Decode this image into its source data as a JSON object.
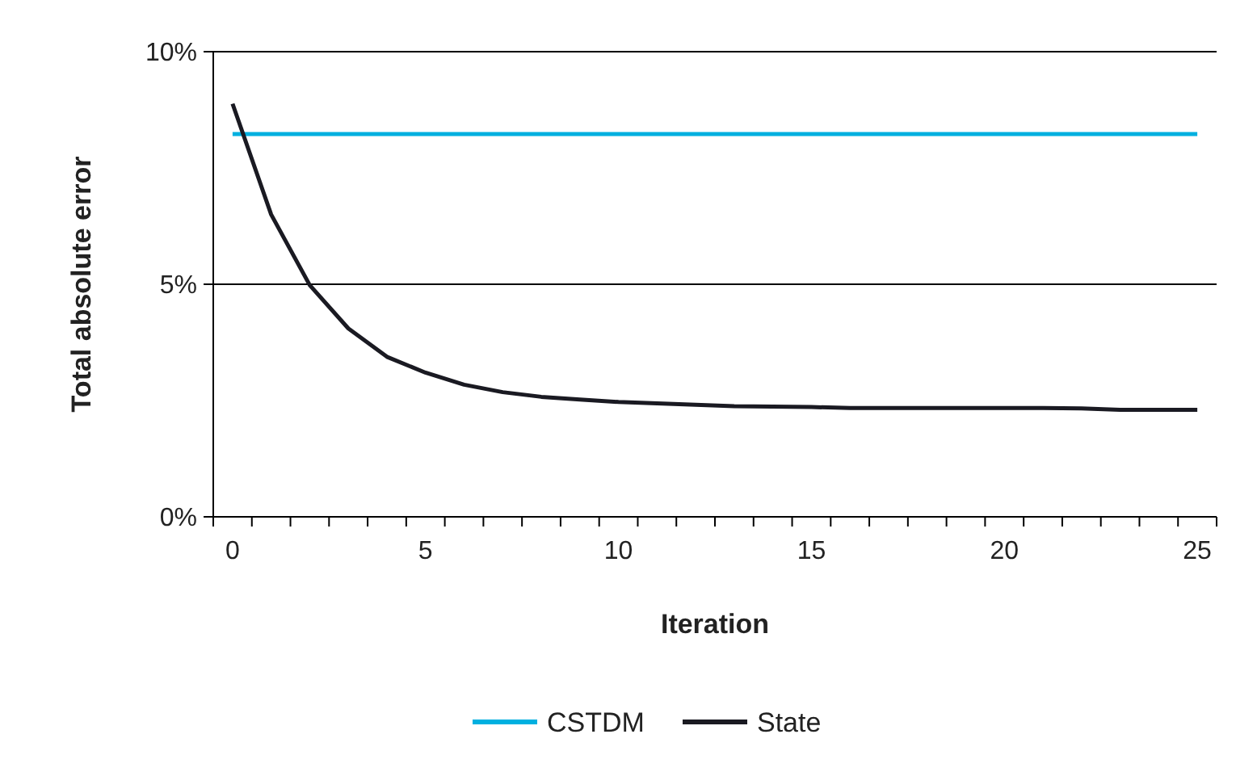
{
  "chart_data": {
    "type": "line",
    "xlabel": "Iteration",
    "ylabel": "Total absolute error",
    "categories": [
      "0",
      null,
      null,
      null,
      null,
      "5",
      null,
      null,
      null,
      null,
      "10",
      null,
      null,
      null,
      null,
      "15",
      null,
      null,
      null,
      null,
      "20",
      null,
      null,
      null,
      null,
      "25"
    ],
    "series": [
      {
        "name": "CSTDM",
        "color": "#00b0e0",
        "values": [
          8.23,
          8.23,
          8.23,
          8.23,
          8.23,
          8.23,
          8.23,
          8.23,
          8.23,
          8.23,
          8.23,
          8.23,
          8.23,
          8.23,
          8.23,
          8.23,
          8.23,
          8.23,
          8.23,
          8.23,
          8.23,
          8.23,
          8.23,
          8.23,
          8.23,
          8.23
        ]
      },
      {
        "name": "State",
        "color": "#1a1a22",
        "values": [
          8.88,
          6.5,
          4.98,
          4.05,
          3.44,
          3.1,
          2.84,
          2.68,
          2.58,
          2.52,
          2.47,
          2.44,
          2.41,
          2.38,
          2.37,
          2.36,
          2.34,
          2.34,
          2.34,
          2.34,
          2.34,
          2.34,
          2.33,
          2.3,
          2.3,
          2.3
        ]
      }
    ],
    "ylim": [
      0,
      10
    ],
    "yticks": [
      {
        "value": 0,
        "label": "0%"
      },
      {
        "value": 5,
        "label": "5%"
      },
      {
        "value": 10,
        "label": "10%"
      }
    ],
    "grid": "y",
    "legend": "bottom",
    "marker": "none",
    "line_style": "solid"
  }
}
